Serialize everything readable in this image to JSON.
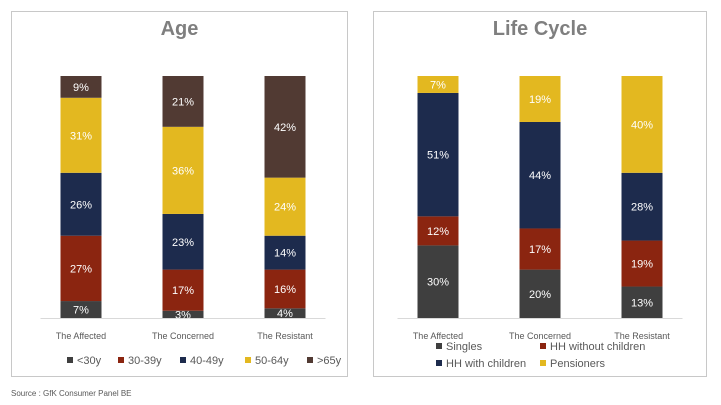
{
  "source": "Source : GfK Consumer Panel BE",
  "chart_data": [
    {
      "type": "bar",
      "stacked": true,
      "title": "Age",
      "categories": [
        "The Affected",
        "The Concerned",
        "The Resistant"
      ],
      "series": [
        {
          "name": "<30y",
          "color": "#3f3f3f",
          "values": [
            7,
            3,
            4
          ]
        },
        {
          "name": "30-39y",
          "color": "#8b2510",
          "values": [
            27,
            17,
            16
          ]
        },
        {
          "name": "40-49y",
          "color": "#1d2b4d",
          "values": [
            26,
            23,
            14
          ]
        },
        {
          "name": "50-64y",
          "color": "#e3b820",
          "values": [
            31,
            36,
            24
          ]
        },
        {
          "name": ">65y",
          "color": "#513a33",
          "values": [
            9,
            21,
            42
          ]
        }
      ],
      "value_labels": [
        [
          "7%",
          "3%",
          "4%"
        ],
        [
          "27%",
          "17%",
          "16%"
        ],
        [
          "26%",
          "23%",
          "14%"
        ],
        [
          "31%",
          "36%",
          "24%"
        ],
        [
          "9%",
          "21%",
          "42%"
        ]
      ],
      "ylim": [
        0,
        100
      ],
      "legend_position": "bottom"
    },
    {
      "type": "bar",
      "stacked": true,
      "title": "Life Cycle",
      "categories": [
        "The Affected",
        "The Concerned",
        "The Resistant"
      ],
      "series": [
        {
          "name": "Singles",
          "color": "#3f3f3f",
          "values": [
            30,
            20,
            13
          ]
        },
        {
          "name": "HH without children",
          "color": "#8b2510",
          "values": [
            12,
            17,
            19
          ]
        },
        {
          "name": "HH with children",
          "color": "#1d2b4d",
          "values": [
            51,
            44,
            28
          ]
        },
        {
          "name": "Pensioners",
          "color": "#e3b820",
          "values": [
            7,
            19,
            40
          ]
        }
      ],
      "value_labels": [
        [
          "30%",
          "20%",
          "13%"
        ],
        [
          "12%",
          "17%",
          "19%"
        ],
        [
          "51%",
          "44%",
          "28%"
        ],
        [
          "7%",
          "19%",
          "40%"
        ]
      ],
      "ylim": [
        0,
        100
      ],
      "legend_position": "bottom"
    }
  ]
}
